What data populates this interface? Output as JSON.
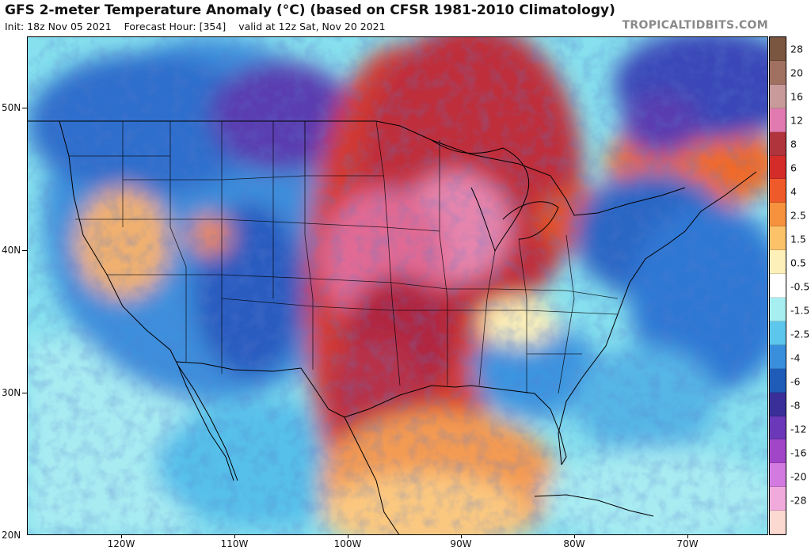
{
  "header": {
    "title": "GFS 2-meter Temperature Anomaly (°C) (based on CFSR 1981-2010 Climatology)",
    "init": "Init: 18z Nov 05 2021",
    "forecast_hour": "Forecast Hour: [354]",
    "valid": "valid at 12z Sat, Nov 20 2021",
    "brand": "TROPICALTIDBITS.COM"
  },
  "map": {
    "lat_labels": [
      "50N",
      "40N",
      "30N",
      "20N"
    ],
    "lon_labels": [
      "120W",
      "110W",
      "100W",
      "90W",
      "80W",
      "70W"
    ]
  },
  "colorbar": {
    "levels": [
      {
        "label": "28",
        "color": "#7a5540"
      },
      {
        "label": "20",
        "color": "#a07060"
      },
      {
        "label": "16",
        "color": "#c89a9a"
      },
      {
        "label": "12",
        "color": "#e07ab0"
      },
      {
        "label": "8",
        "color": "#b0343c"
      },
      {
        "label": "6",
        "color": "#d42c28"
      },
      {
        "label": "4",
        "color": "#ee5a2a"
      },
      {
        "label": "2.5",
        "color": "#f6913e"
      },
      {
        "label": "1.5",
        "color": "#fbc26a"
      },
      {
        "label": "0.5",
        "color": "#fdf0b8"
      },
      {
        "label": "-0.5",
        "color": "#ffffff"
      },
      {
        "label": "-1.5",
        "color": "#a6eef0"
      },
      {
        "label": "-2.5",
        "color": "#5cc6ec"
      },
      {
        "label": "-4",
        "color": "#3a8fdc"
      },
      {
        "label": "-6",
        "color": "#1e5cb8"
      },
      {
        "label": "-8",
        "color": "#3a2e98"
      },
      {
        "label": "-12",
        "color": "#6a38b8"
      },
      {
        "label": "-16",
        "color": "#a246c8"
      },
      {
        "label": "-20",
        "color": "#d27ae0"
      },
      {
        "label": "-28",
        "color": "#f0aadc"
      },
      {
        "label": "",
        "color": "#fbd8d0"
      }
    ]
  }
}
